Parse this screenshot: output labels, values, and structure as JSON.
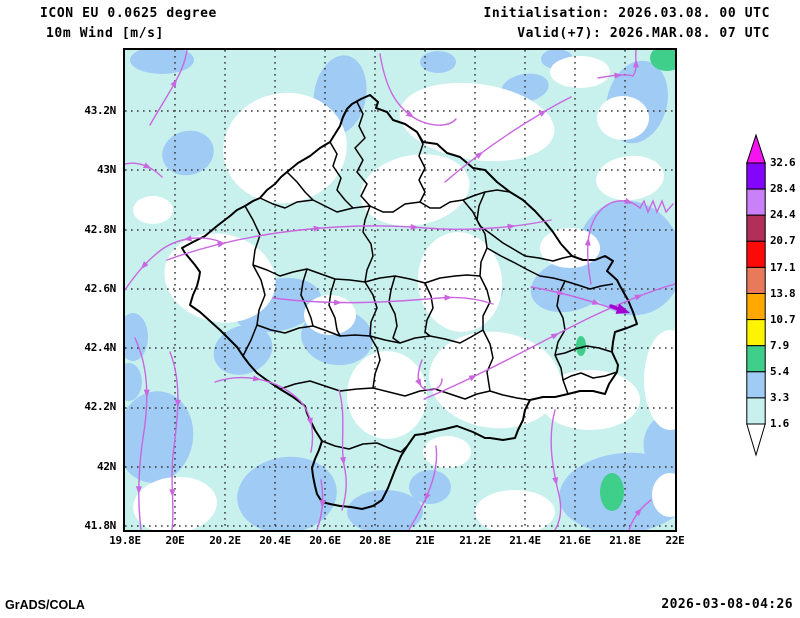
{
  "header": {
    "model_line": "ICON EU 0.0625 degree",
    "field_line": "10m Wind [m/s]",
    "init_line": "Initialisation: 2026.03.08. 00 UTC",
    "valid_line": "Valid(+7): 2026.MAR.08. 07 UTC"
  },
  "footer": {
    "generator": "GrADS/COLA",
    "created": "2026-03-08-04:26"
  },
  "axes": {
    "lat_labels": [
      "43.2N",
      "43N",
      "42.8N",
      "42.6N",
      "42.4N",
      "42.2N",
      "42N",
      "41.8N"
    ],
    "lon_labels": [
      "19.8E",
      "20E",
      "20.2E",
      "20.4E",
      "20.6E",
      "20.8E",
      "21E",
      "21.2E",
      "21.4E",
      "21.6E",
      "21.8E",
      "22E"
    ]
  },
  "colorbar": {
    "labels": [
      "32.6",
      "28.4",
      "24.4",
      "20.7",
      "17.1",
      "13.8",
      "10.7",
      "7.9",
      "5.4",
      "3.3",
      "1.6"
    ],
    "segment_colors_top_to_bottom": [
      "#8405fb",
      "#ca80f8",
      "#b03059",
      "#fc0a0a",
      "#e8795a",
      "#ffa800",
      "#fcf403",
      "#3fcf8a",
      "#9fcbf5",
      "#c8f1ee"
    ],
    "over_color": "#f513f0",
    "under_color": "#ffffff"
  },
  "map": {
    "shade_low": "#c8f1ee",
    "shade_mid": "#9fcbf5",
    "shade_high": "#3fcf8a",
    "stream_color": "#c966e0",
    "bold_arrow_color": "#a100d0"
  },
  "chart_data": {
    "type": "map",
    "title": "10m Wind [m/s]",
    "model": "ICON EU 0.0625 degree",
    "init_time": "2026.03.08. 00 UTC",
    "valid_time": "2026.MAR.08. 07 UTC",
    "forecast_hour": 7,
    "lon_range": [
      19.8,
      22.0
    ],
    "lat_range": [
      41.8,
      43.2
    ],
    "grid_interval_deg": 0.2,
    "shading_levels_ms": [
      1.6,
      3.3,
      5.4,
      7.9,
      10.7,
      13.8,
      17.1,
      20.7,
      24.4,
      28.4,
      32.6
    ]
  }
}
